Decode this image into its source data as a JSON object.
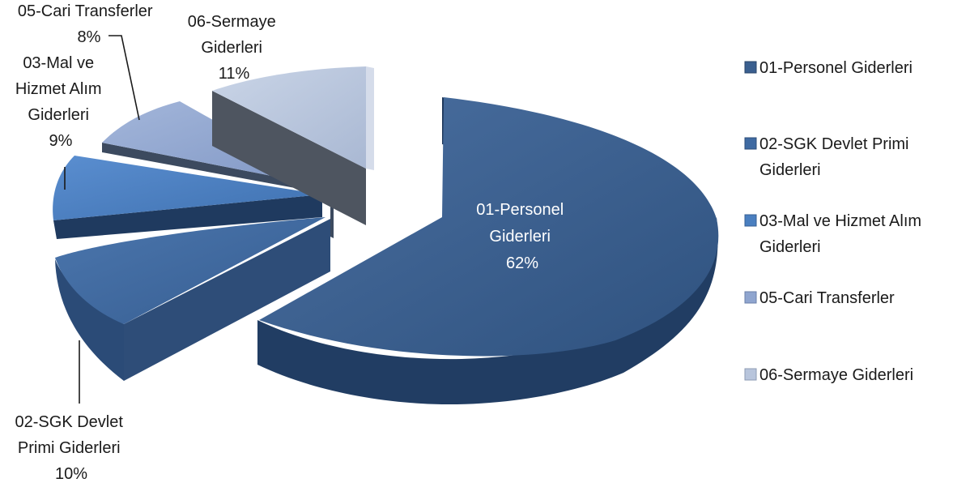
{
  "chart_data": {
    "type": "pie",
    "title": "",
    "categories": [
      "01-Personel Giderleri",
      "02-SGK Devlet Primi Giderleri",
      "03-Mal ve Hizmet Alım Giderleri",
      "05-Cari Transferler",
      "06-Sermaye Giderleri"
    ],
    "values": [
      62,
      10,
      9,
      8,
      11
    ],
    "value_labels": [
      "62%",
      "10%",
      "9%",
      "8%",
      "11%"
    ],
    "label_lines": [
      [
        "01-Personel",
        "Giderleri",
        "62%"
      ],
      [
        "02-SGK Devlet",
        "Primi Giderleri",
        "10%"
      ],
      [
        "03-Mal ve",
        "Hizmet Alım",
        "Giderleri",
        "9%"
      ],
      [
        "05-Cari Transferler",
        "8%"
      ],
      [
        "06-Sermaye",
        "Giderleri",
        "11%"
      ]
    ],
    "legend": {
      "position": "right",
      "entries": [
        [
          "01-Personel Giderleri"
        ],
        [
          "02-SGK Devlet Primi",
          "Giderleri"
        ],
        [
          "03-Mal ve Hizmet Alım",
          "Giderleri"
        ],
        [
          "05-Cari Transferler"
        ],
        [
          "06-Sermaye Giderleri"
        ]
      ]
    },
    "style": "3d-exploded",
    "colors": [
      "#3a5f8f",
      "#3f6aa2",
      "#4a7fc0",
      "#8fa5cf",
      "#b8c5dc"
    ],
    "side_colors": [
      "#25446e",
      "#2e4d78",
      "#2b4b77",
      "#3c4a5f",
      "#4e5560"
    ]
  }
}
